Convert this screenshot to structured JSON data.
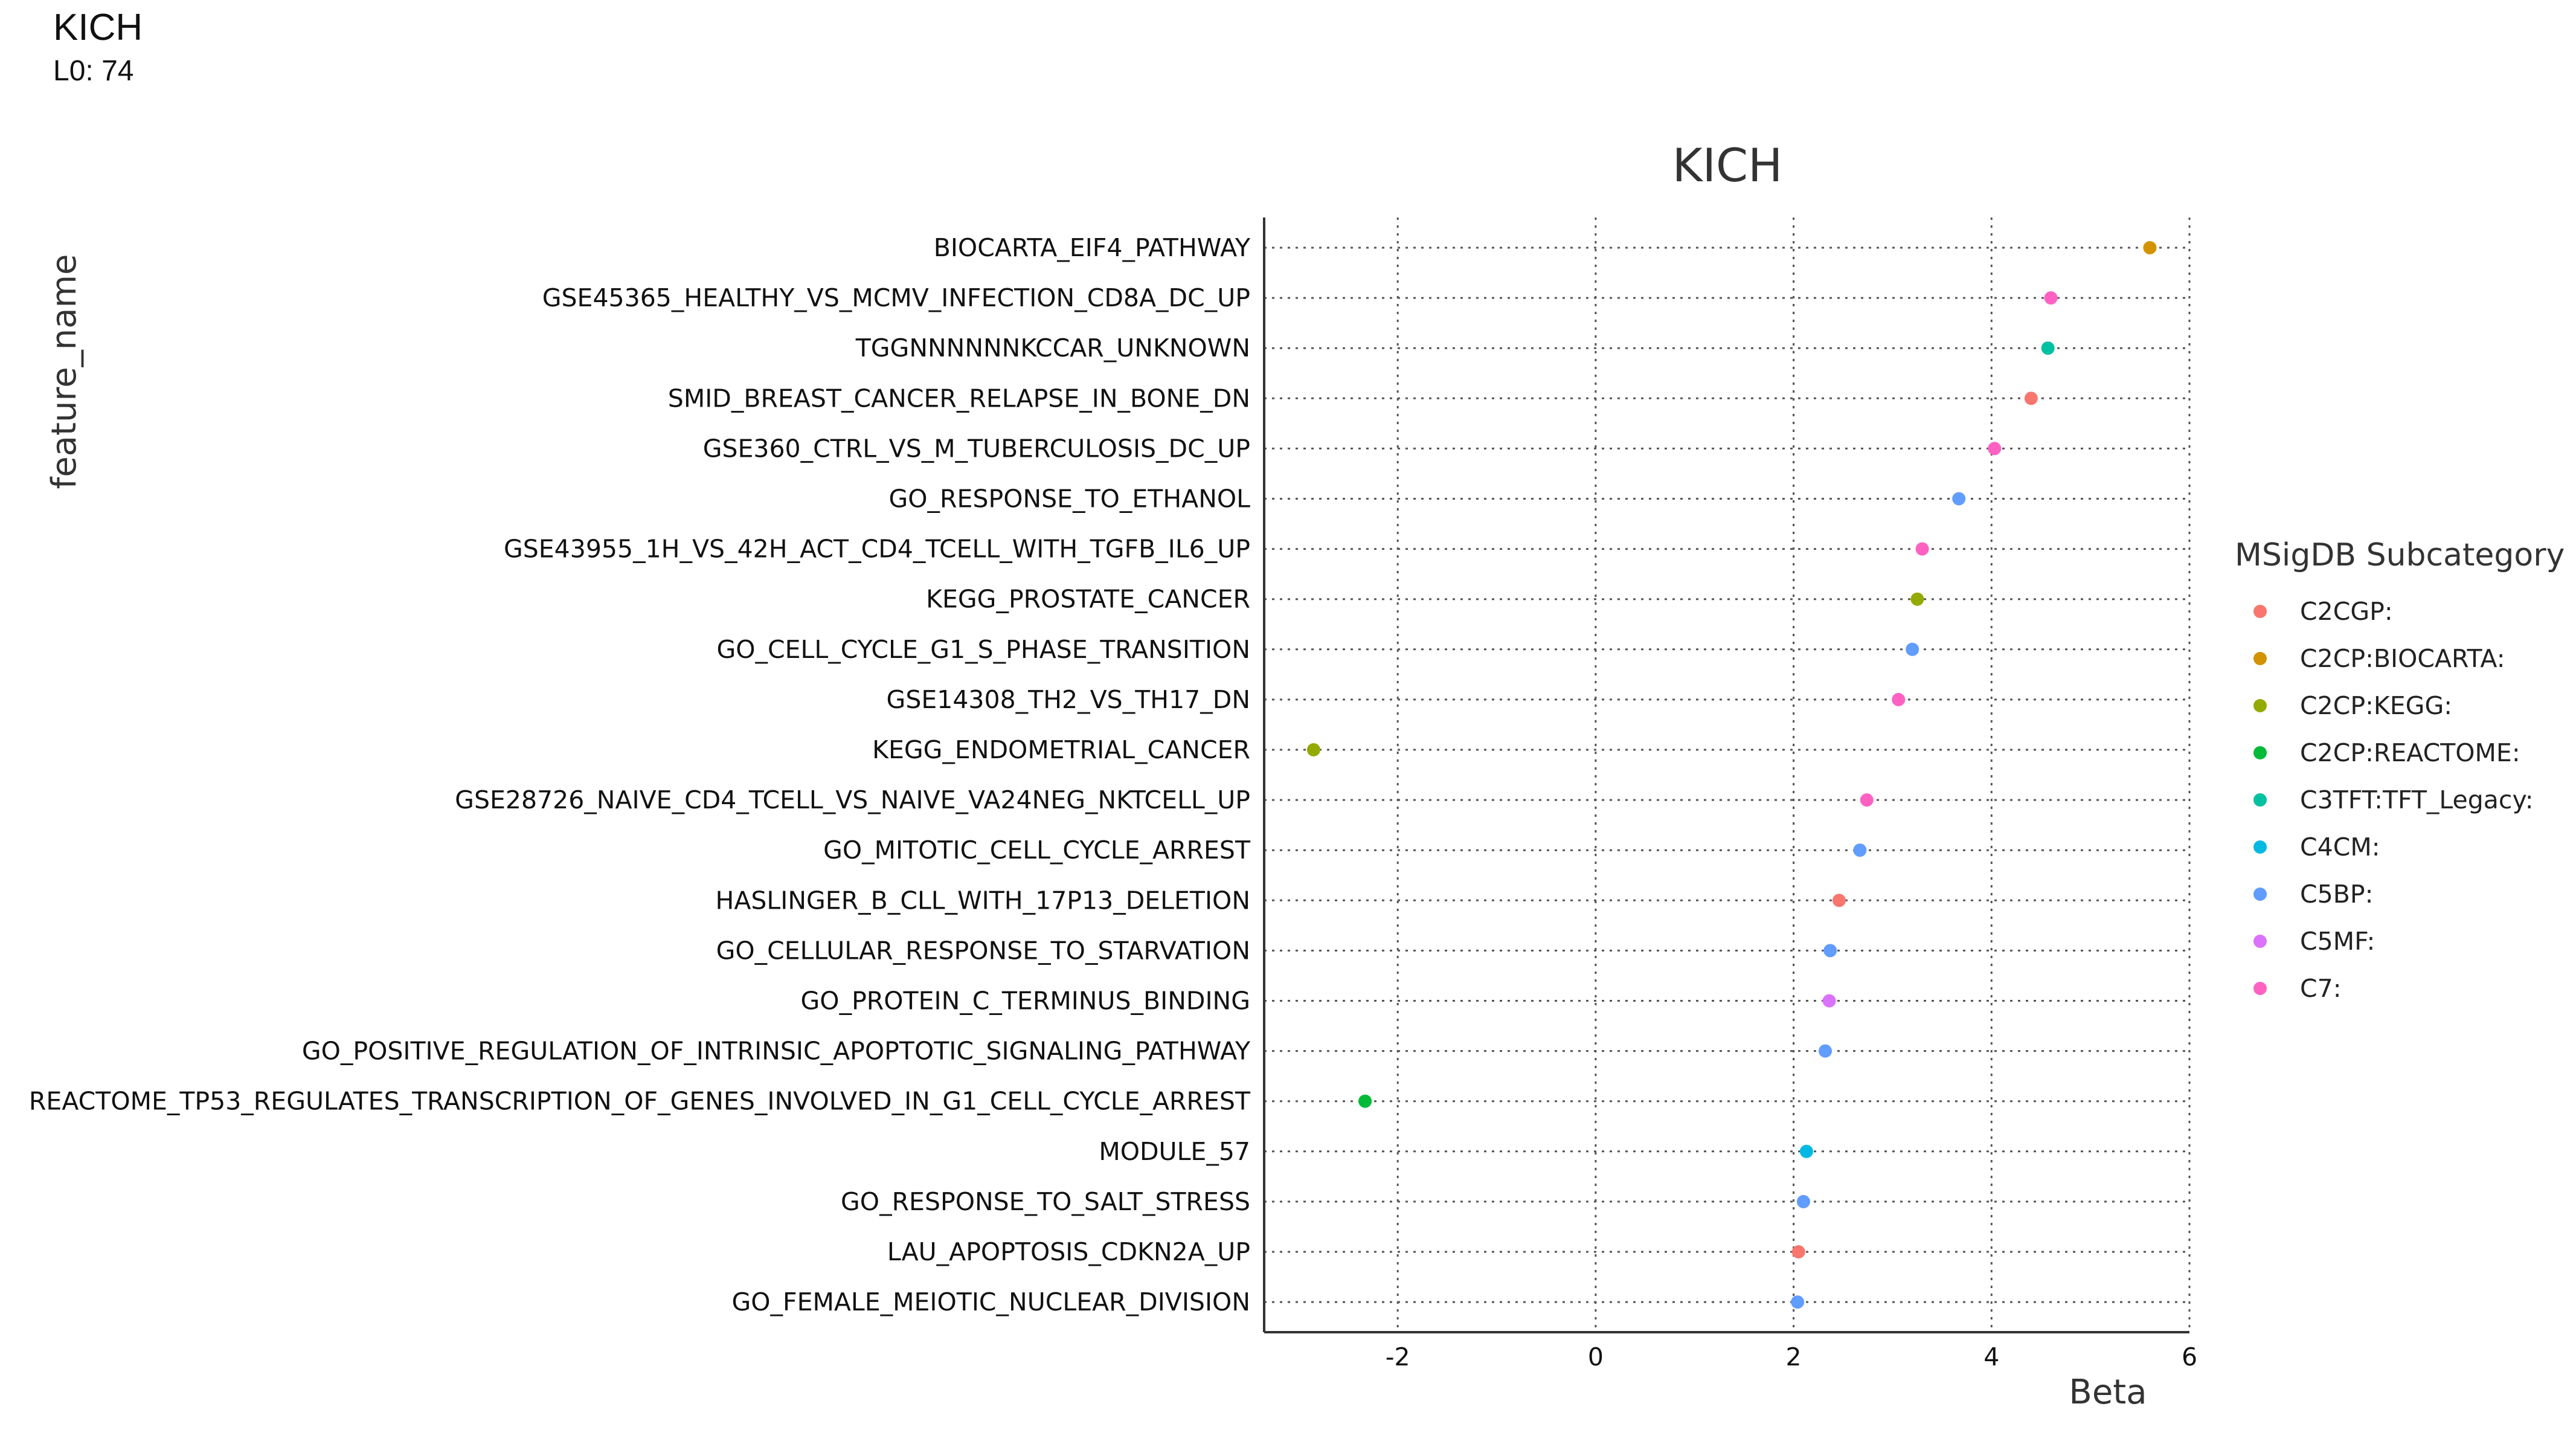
{
  "header": {
    "title": "KICH",
    "subtitle": "L0: 74"
  },
  "chart_data": {
    "type": "scatter",
    "title": "KICH",
    "xlabel": "Beta",
    "ylabel": "feature_name",
    "xlim": [
      -3.35,
      6.0
    ],
    "x_ticks": [
      -2,
      0,
      2,
      4,
      6
    ],
    "grid": true,
    "legend_position": "right",
    "legend": {
      "title": "MSigDB Subcategory",
      "entries": [
        {
          "label": "C2CGP:",
          "color": "#F8766D"
        },
        {
          "label": "C2CP:BIOCARTA:",
          "color": "#D39200"
        },
        {
          "label": "C2CP:KEGG:",
          "color": "#93AA00"
        },
        {
          "label": "C2CP:REACTOME:",
          "color": "#00BA38"
        },
        {
          "label": "C3TFT:TFT_Legacy:",
          "color": "#00C19F"
        },
        {
          "label": "C4CM:",
          "color": "#00B9E3"
        },
        {
          "label": "C5BP:",
          "color": "#619CFF"
        },
        {
          "label": "C5MF:",
          "color": "#DB72FB"
        },
        {
          "label": "C7:",
          "color": "#FF61C3"
        }
      ]
    },
    "points": [
      {
        "feature": "BIOCARTA_EIF4_PATHWAY",
        "beta": 5.6,
        "category": "C2CP:BIOCARTA:"
      },
      {
        "feature": "GSE45365_HEALTHY_VS_MCMV_INFECTION_CD8A_DC_UP",
        "beta": 4.6,
        "category": "C7:"
      },
      {
        "feature": "TGGNNNNNNKCCAR_UNKNOWN",
        "beta": 4.57,
        "category": "C3TFT:TFT_Legacy:"
      },
      {
        "feature": "SMID_BREAST_CANCER_RELAPSE_IN_BONE_DN",
        "beta": 4.4,
        "category": "C2CGP:"
      },
      {
        "feature": "GSE360_CTRL_VS_M_TUBERCULOSIS_DC_UP",
        "beta": 4.03,
        "category": "C7:"
      },
      {
        "feature": "GO_RESPONSE_TO_ETHANOL",
        "beta": 3.67,
        "category": "C5BP:"
      },
      {
        "feature": "GSE43955_1H_VS_42H_ACT_CD4_TCELL_WITH_TGFB_IL6_UP",
        "beta": 3.3,
        "category": "C7:"
      },
      {
        "feature": "KEGG_PROSTATE_CANCER",
        "beta": 3.25,
        "category": "C2CP:KEGG:"
      },
      {
        "feature": "GO_CELL_CYCLE_G1_S_PHASE_TRANSITION",
        "beta": 3.2,
        "category": "C5BP:"
      },
      {
        "feature": "GSE14308_TH2_VS_TH17_DN",
        "beta": 3.06,
        "category": "C7:"
      },
      {
        "feature": "KEGG_ENDOMETRIAL_CANCER",
        "beta": -2.85,
        "category": "C2CP:KEGG:"
      },
      {
        "feature": "GSE28726_NAIVE_CD4_TCELL_VS_NAIVE_VA24NEG_NKTCELL_UP",
        "beta": 2.74,
        "category": "C7:"
      },
      {
        "feature": "GO_MITOTIC_CELL_CYCLE_ARREST",
        "beta": 2.67,
        "category": "C5BP:"
      },
      {
        "feature": "HASLINGER_B_CLL_WITH_17P13_DELETION",
        "beta": 2.46,
        "category": "C2CGP:"
      },
      {
        "feature": "GO_CELLULAR_RESPONSE_TO_STARVATION",
        "beta": 2.37,
        "category": "C5BP:"
      },
      {
        "feature": "GO_PROTEIN_C_TERMINUS_BINDING",
        "beta": 2.36,
        "category": "C5MF:"
      },
      {
        "feature": "GO_POSITIVE_REGULATION_OF_INTRINSIC_APOPTOTIC_SIGNALING_PATHWAY",
        "beta": 2.32,
        "category": "C5BP:"
      },
      {
        "feature": "REACTOME_TP53_REGULATES_TRANSCRIPTION_OF_GENES_INVOLVED_IN_G1_CELL_CYCLE_ARREST",
        "beta": -2.33,
        "category": "C2CP:REACTOME:"
      },
      {
        "feature": "MODULE_57",
        "beta": 2.13,
        "category": "C4CM:"
      },
      {
        "feature": "GO_RESPONSE_TO_SALT_STRESS",
        "beta": 2.1,
        "category": "C5BP:"
      },
      {
        "feature": "LAU_APOPTOSIS_CDKN2A_UP",
        "beta": 2.05,
        "category": "C2CGP:"
      },
      {
        "feature": "GO_FEMALE_MEIOTIC_NUCLEAR_DIVISION",
        "beta": 2.04,
        "category": "C5BP:"
      }
    ]
  }
}
